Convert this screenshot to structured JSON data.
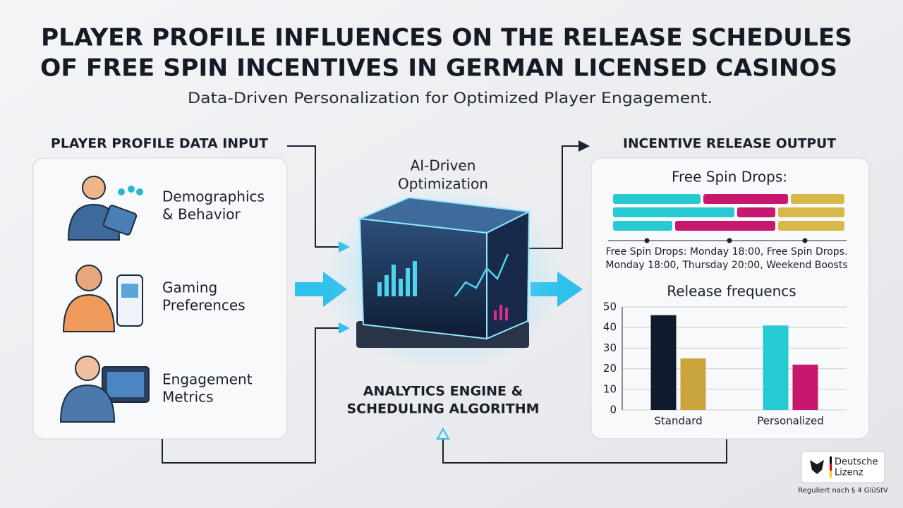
{
  "header": {
    "title_lines": [
      "PLAYER PROFILE INFLUENCES ON THE RELEASE SCHEDULES",
      "OF FREE SPIN INCENTIVES IN GERMAN LICENSED CASINOS"
    ],
    "subtitle": "Data-Driven Personalization for Optimized Player Engagement."
  },
  "input": {
    "heading": "PLAYER PROFILE DATA INPUT",
    "items": [
      [
        "Demographics",
        "& Behavior"
      ],
      [
        "Gaming",
        "Preferences"
      ],
      [
        "Engagement",
        "Metrics"
      ]
    ]
  },
  "engine": {
    "top_label": [
      "AI-Driven",
      "Optimization"
    ],
    "bottom_label": [
      "ANALYTICS ENGINE &",
      "SCHEDULING ALGORITHM"
    ]
  },
  "output": {
    "heading": "INCENTIVE RELEASE OUTPUT",
    "drops_title": "Free Spin Drops:",
    "drops_note": [
      "Free Spin Drops: Monday 18:00, Free Spin Drops.",
      "Monday 18:00, Thursday 20:00, Weekend Boosts"
    ]
  },
  "chart_data": {
    "type": "bar",
    "title": "Release frequencs",
    "categories": [
      "Standard",
      "Personalized"
    ],
    "series": [
      {
        "colors": [
          "#111a2c",
          "#27c9d2"
        ],
        "values": [
          46,
          41
        ]
      },
      {
        "colors": [
          "#c9a53c",
          "#c8176e"
        ],
        "values": [
          25,
          22
        ]
      }
    ],
    "ylim": [
      0,
      50
    ],
    "yticks": [
      0,
      10,
      20,
      30,
      40,
      50
    ],
    "grid": true
  },
  "badge": {
    "name": [
      "Deutsche",
      "Lizenz"
    ],
    "caption": "Reguliert nach § 4 GlüStV"
  }
}
